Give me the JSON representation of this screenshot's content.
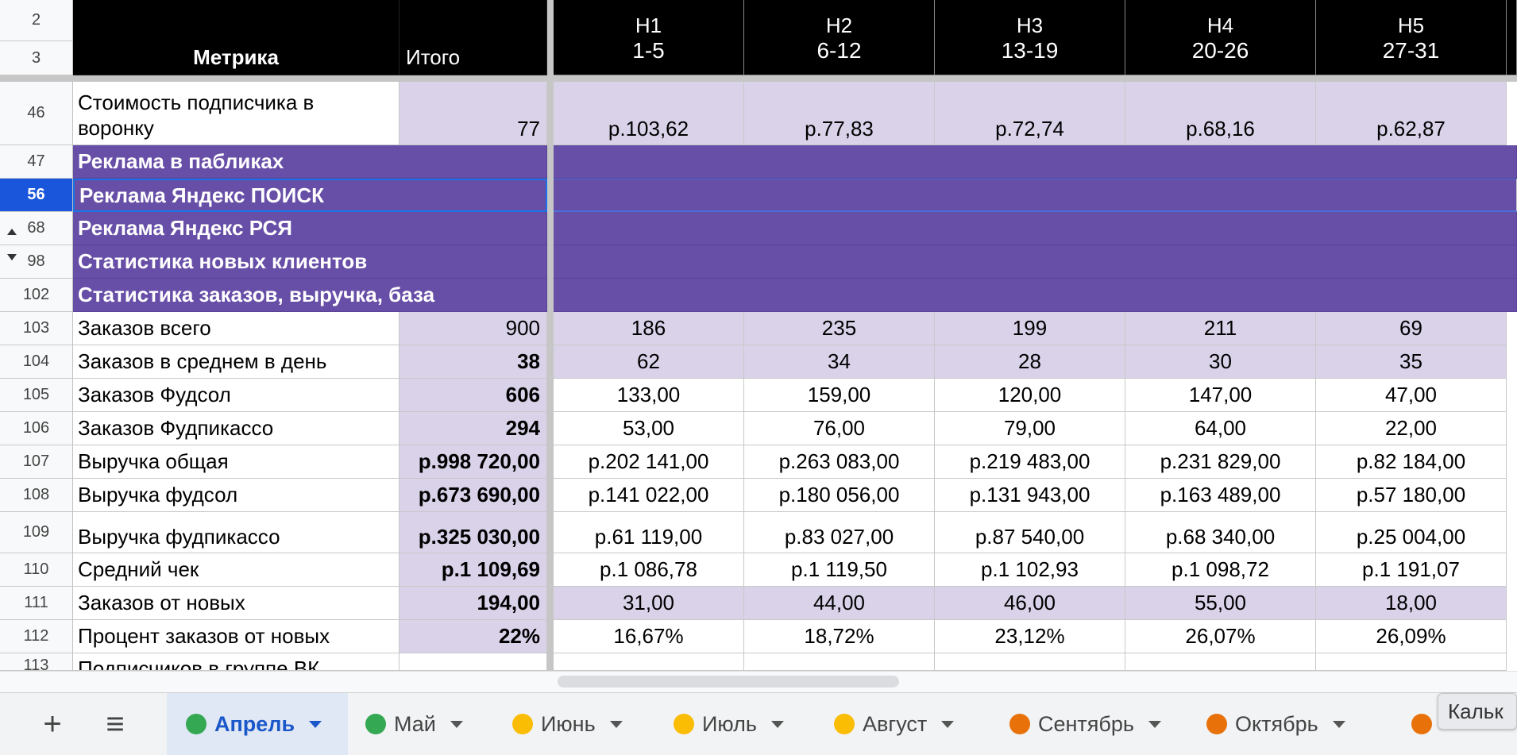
{
  "header": {
    "row_a": "2",
    "row_b": "3",
    "metric_label": "Метрика",
    "total_label": "Итого",
    "weeks": [
      {
        "name": "Н1",
        "range": "1-5"
      },
      {
        "name": "Н2",
        "range": "6-12"
      },
      {
        "name": "Н3",
        "range": "13-19"
      },
      {
        "name": "Н4",
        "range": "20-26"
      },
      {
        "name": "Н5",
        "range": "27-31"
      }
    ]
  },
  "rows": [
    {
      "num": "46",
      "label": "Стоимость подписчика в воронку",
      "label_line1": "Стоимость подписчика в",
      "label_line2": "воронку",
      "total": "77",
      "values": [
        "р.103,62",
        "р.77,83",
        "р.72,74",
        "р.68,16",
        "р.62,87"
      ]
    },
    {
      "num": "47",
      "label": "Реклама в пабликах"
    },
    {
      "num": "56",
      "label": "Реклама Яндекс ПОИСК"
    },
    {
      "num": "68",
      "label": "Реклама Яндекс РСЯ"
    },
    {
      "num": "98",
      "label": "Статистика новых клиентов"
    },
    {
      "num": "102",
      "label": "Статистика заказов, выручка, база"
    },
    {
      "num": "103",
      "label": "Заказов всего",
      "total": "900",
      "values": [
        "186",
        "235",
        "199",
        "211",
        "69"
      ]
    },
    {
      "num": "104",
      "label": "Заказов в среднем в день",
      "total": "38",
      "values": [
        "62",
        "34",
        "28",
        "30",
        "35"
      ]
    },
    {
      "num": "105",
      "label": "Заказов Фудсол",
      "total": "606",
      "values": [
        "133,00",
        "159,00",
        "120,00",
        "147,00",
        "47,00"
      ]
    },
    {
      "num": "106",
      "label": "Заказов Фудпикассо",
      "total": "294",
      "values": [
        "53,00",
        "76,00",
        "79,00",
        "64,00",
        "22,00"
      ]
    },
    {
      "num": "107",
      "label": "Выручка общая",
      "total": "р.998 720,00",
      "values": [
        "р.202 141,00",
        "р.263 083,00",
        "р.219 483,00",
        "р.231 829,00",
        "р.82 184,00"
      ]
    },
    {
      "num": "108",
      "label": "Выручка фудсол",
      "total": "р.673 690,00",
      "values": [
        "р.141 022,00",
        "р.180 056,00",
        "р.131 943,00",
        "р.163 489,00",
        "р.57 180,00"
      ]
    },
    {
      "num": "109",
      "label": "Выручка фудпикассо",
      "total": "р.325 030,00",
      "values": [
        "р.61 119,00",
        "р.83 027,00",
        "р.87 540,00",
        "р.68 340,00",
        "р.25 004,00"
      ]
    },
    {
      "num": "110",
      "label": "Средний чек",
      "total": "р.1 109,69",
      "values": [
        "р.1 086,78",
        "р.1 119,50",
        "р.1 102,93",
        "р.1 098,72",
        "р.1 191,07"
      ]
    },
    {
      "num": "111",
      "label": "Заказов от новых",
      "total": "194,00",
      "values": [
        "31,00",
        "44,00",
        "46,00",
        "55,00",
        "18,00"
      ]
    },
    {
      "num": "112",
      "label": "Процент заказов от новых",
      "total": "22%",
      "values": [
        "16,67%",
        "18,72%",
        "23,12%",
        "26,07%",
        "26,09%"
      ]
    },
    {
      "num": "113",
      "label": "Подписчиков в группе ВК"
    }
  ],
  "tabs": {
    "add_label": "+",
    "list_label": "≡",
    "sheets": [
      {
        "label": "Апрель",
        "color": "#34a853",
        "active": true
      },
      {
        "label": "Май",
        "color": "#34a853"
      },
      {
        "label": "Июнь",
        "color": "#fbbc04"
      },
      {
        "label": "Июль",
        "color": "#fbbc04"
      },
      {
        "label": "Август",
        "color": "#fbbc04"
      },
      {
        "label": "Сентябрь",
        "color": "#e8710a"
      },
      {
        "label": "Октябрь",
        "color": "#e8710a"
      }
    ],
    "overflow_dot_color": "#e8710a",
    "tooltip": "Кальк"
  },
  "colors": {
    "header_bg": "#000000",
    "lavender": "#d9d2e9",
    "section_purple": "#674ea7",
    "selection_blue": "#1a56db"
  }
}
